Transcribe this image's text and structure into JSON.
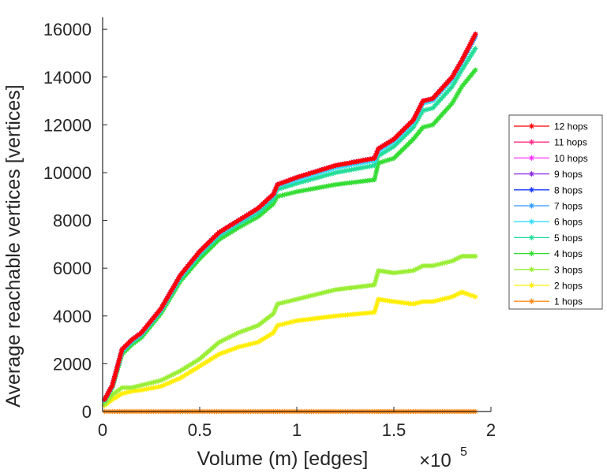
{
  "chart_data": {
    "type": "line",
    "title": "",
    "xlabel": "Volume (m) [edges]",
    "ylabel": "Average reachable vertices [vertices]",
    "x_multiplier_label": "×10",
    "x_multiplier_exponent": "5",
    "xlim": [
      0,
      2
    ],
    "ylim": [
      0,
      16500
    ],
    "x_ticks": [
      0,
      0.5,
      1,
      1.5,
      2
    ],
    "x_tick_labels": [
      "0",
      "0.5",
      "1",
      "1.5",
      "2"
    ],
    "y_ticks": [
      0,
      2000,
      4000,
      6000,
      8000,
      10000,
      12000,
      14000,
      16000
    ],
    "y_tick_labels": [
      "0",
      "2000",
      "4000",
      "6000",
      "8000",
      "10000",
      "12000",
      "14000",
      "16000"
    ],
    "grid": false,
    "legend_position": "right",
    "marker": "star",
    "x": [
      0.01,
      0.05,
      0.1,
      0.15,
      0.2,
      0.3,
      0.4,
      0.5,
      0.6,
      0.7,
      0.8,
      0.88,
      0.9,
      1.0,
      1.2,
      1.4,
      1.42,
      1.5,
      1.6,
      1.65,
      1.7,
      1.8,
      1.85,
      1.92
    ],
    "series": [
      {
        "name": "12 hops",
        "color": "#ff0000",
        "values": [
          500,
          1100,
          2600,
          3000,
          3300,
          4300,
          5700,
          6700,
          7500,
          8000,
          8500,
          9100,
          9500,
          9800,
          10300,
          10600,
          11000,
          11400,
          12200,
          13000,
          13100,
          14000,
          14700,
          15800
        ]
      },
      {
        "name": "11 hops",
        "color": "#ff2d8a",
        "values": [
          500,
          1100,
          2600,
          3000,
          3300,
          4300,
          5700,
          6700,
          7500,
          8000,
          8500,
          9100,
          9500,
          9800,
          10300,
          10600,
          11000,
          11400,
          12200,
          13000,
          13100,
          14000,
          14700,
          15800
        ]
      },
      {
        "name": "10 hops",
        "color": "#ff33ff",
        "values": [
          500,
          1100,
          2600,
          3000,
          3300,
          4300,
          5700,
          6700,
          7500,
          8000,
          8500,
          9100,
          9500,
          9800,
          10300,
          10600,
          11000,
          11400,
          12200,
          13000,
          13100,
          14000,
          14700,
          15800
        ]
      },
      {
        "name": "9 hops",
        "color": "#8a2be2",
        "values": [
          500,
          1100,
          2600,
          3000,
          3300,
          4300,
          5700,
          6700,
          7500,
          8000,
          8500,
          9100,
          9500,
          9800,
          10300,
          10600,
          11000,
          11400,
          12200,
          13000,
          13100,
          14000,
          14700,
          15800
        ]
      },
      {
        "name": "8 hops",
        "color": "#1a3cff",
        "values": [
          500,
          1100,
          2600,
          3000,
          3300,
          4300,
          5700,
          6700,
          7500,
          8000,
          8500,
          9100,
          9500,
          9800,
          10300,
          10600,
          11000,
          11400,
          12200,
          13000,
          13100,
          14000,
          14700,
          15800
        ]
      },
      {
        "name": "7 hops",
        "color": "#3399ff",
        "values": [
          500,
          1100,
          2600,
          3000,
          3300,
          4300,
          5700,
          6700,
          7500,
          8000,
          8500,
          9100,
          9500,
          9800,
          10300,
          10600,
          11000,
          11400,
          12200,
          13000,
          13100,
          14000,
          14700,
          15700
        ]
      },
      {
        "name": "6 hops",
        "color": "#33ddff",
        "values": [
          480,
          1080,
          2550,
          2950,
          3250,
          4250,
          5650,
          6650,
          7450,
          7950,
          8450,
          9050,
          9450,
          9700,
          10200,
          10500,
          10900,
          11300,
          12100,
          12900,
          13000,
          13900,
          14600,
          15700
        ]
      },
      {
        "name": "5 hops",
        "color": "#22dd99",
        "values": [
          470,
          1050,
          2500,
          2900,
          3200,
          4200,
          5550,
          6550,
          7350,
          7850,
          8300,
          8900,
          9300,
          9550,
          10000,
          10300,
          10700,
          11100,
          11900,
          12600,
          12700,
          13600,
          14300,
          15200
        ]
      },
      {
        "name": "4 hops",
        "color": "#33dd33",
        "values": [
          450,
          1000,
          2400,
          2800,
          3100,
          4100,
          5450,
          6400,
          7200,
          7700,
          8150,
          8700,
          9000,
          9200,
          9500,
          9700,
          10400,
          10600,
          11400,
          11900,
          12000,
          12900,
          13600,
          14300
        ]
      },
      {
        "name": "3 hops",
        "color": "#99ee33",
        "values": [
          300,
          700,
          1000,
          1000,
          1100,
          1300,
          1700,
          2200,
          2900,
          3300,
          3600,
          4100,
          4500,
          4700,
          5100,
          5300,
          5900,
          5800,
          5900,
          6100,
          6100,
          6300,
          6500,
          6500
        ]
      },
      {
        "name": "2 hops",
        "color": "#ffee00",
        "values": [
          250,
          500,
          750,
          850,
          900,
          1050,
          1400,
          1900,
          2400,
          2700,
          2900,
          3300,
          3600,
          3800,
          4000,
          4150,
          4700,
          4600,
          4500,
          4600,
          4600,
          4800,
          5000,
          4800
        ]
      },
      {
        "name": "1 hops",
        "color": "#ff8c1a",
        "values": [
          0,
          0,
          0,
          0,
          0,
          0,
          0,
          0,
          0,
          0,
          0,
          0,
          0,
          0,
          0,
          0,
          0,
          0,
          0,
          0,
          0,
          0,
          0,
          0
        ]
      }
    ]
  }
}
